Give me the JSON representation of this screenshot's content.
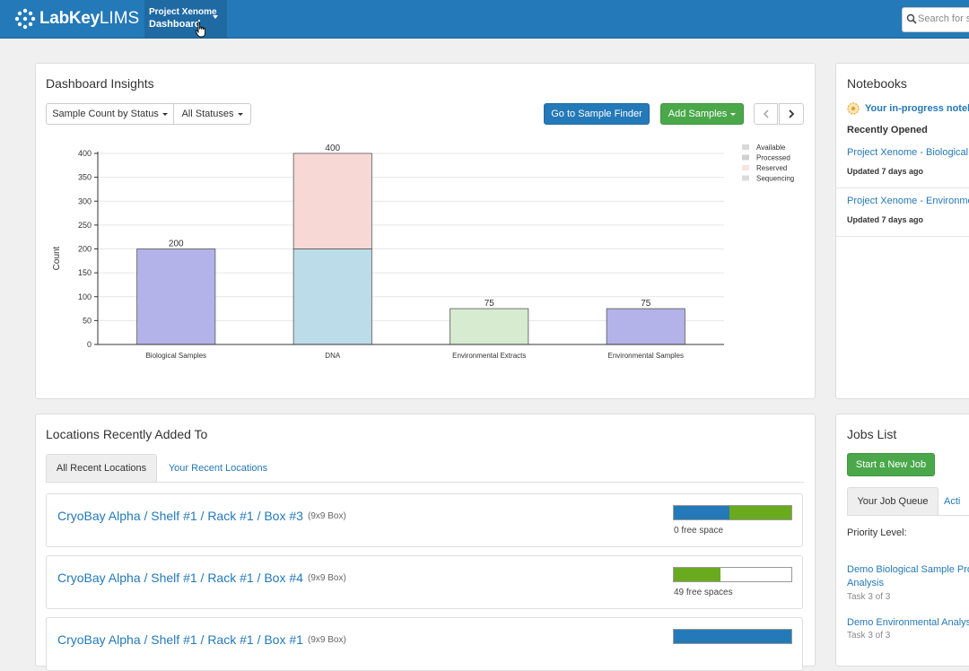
{
  "header": {
    "brand_lab": "LabKey",
    "brand_lims": "LIMS",
    "project_label": "Project Xenome",
    "project_page": "Dashboard",
    "search_placeholder": "Search for s"
  },
  "insights": {
    "title": "Dashboard Insights",
    "dropdown_metric": "Sample Count by Status",
    "dropdown_status": "All Statuses",
    "sample_finder_label": "Go to Sample Finder",
    "add_samples_label": "Add Samples"
  },
  "chart_data": {
    "type": "bar",
    "stacked": true,
    "categories": [
      "Biological Samples",
      "DNA",
      "Environmental Extracts",
      "Environmental Samples"
    ],
    "series": [
      {
        "name": "Available",
        "values": [
          0,
          0,
          0,
          0
        ]
      },
      {
        "name": "Processed",
        "values": [
          200,
          200,
          75,
          75
        ]
      },
      {
        "name": "Reserved",
        "values": [
          0,
          200,
          0,
          0
        ]
      },
      {
        "name": "Sequencing",
        "values": [
          0,
          0,
          0,
          0
        ]
      }
    ],
    "totals": [
      200,
      400,
      75,
      75
    ],
    "title": "",
    "xlabel": "",
    "ylabel": "Count",
    "ylim": [
      0,
      400
    ],
    "yticks": [
      0,
      50,
      100,
      150,
      200,
      250,
      300,
      350,
      400
    ],
    "grid": true,
    "legend": "top-right",
    "bar_colors": [
      "#b3b3ea",
      "#bcdce9",
      "#f8d8d4",
      "#d6ebcf"
    ]
  },
  "notebooks": {
    "title": "Notebooks",
    "in_progress": "Your in-progress notebo",
    "recent_heading": "Recently Opened",
    "items": [
      {
        "name": "Project Xenome - Biological",
        "updated": "Updated 7 days ago"
      },
      {
        "name": "Project Xenome - Environme",
        "updated": "Updated 7 days ago"
      }
    ]
  },
  "locations": {
    "title": "Locations Recently Added To",
    "tabs": [
      "All Recent Locations",
      "Your Recent Locations"
    ],
    "rows": [
      {
        "path": "CryoBay Alpha / Shelf #1 / Rack #1 / Box #3",
        "type": "(9x9 Box)",
        "used_fraction": 0.47,
        "recent_fraction": 0.53,
        "space": "0 free space"
      },
      {
        "path": "CryoBay Alpha / Shelf #1 / Rack #1 / Box #4",
        "type": "(9x9 Box)",
        "used_fraction": 0.0,
        "recent_fraction": 0.395,
        "space": "49 free spaces"
      },
      {
        "path": "CryoBay Alpha / Shelf #1 / Rack #1 / Box #1",
        "type": "(9x9 Box)",
        "used_fraction": 1.0,
        "recent_fraction": 0.0,
        "space": ""
      }
    ]
  },
  "jobs": {
    "title": "Jobs List",
    "start_label": "Start a New Job",
    "tabs": [
      "Your Job Queue",
      "Acti"
    ],
    "priority_label": "Priority Level:",
    "items": [
      {
        "name": "Demo Biological Sample Pro Analysis",
        "task": "Task 3 of 3"
      },
      {
        "name": "Demo Environmental Analysi",
        "task": "Task 3 of 3"
      }
    ]
  },
  "colors": {
    "header": "#2479b8",
    "link": "#2479b8",
    "success": "#4aa84a",
    "capacity_used": "#2479b8",
    "capacity_recent": "#6aaa1e"
  }
}
